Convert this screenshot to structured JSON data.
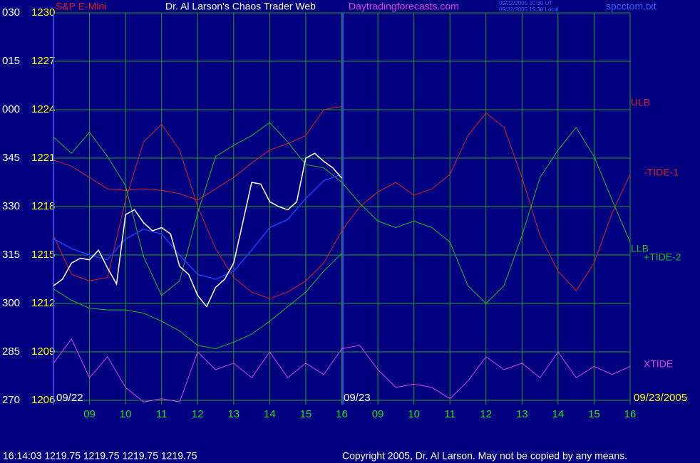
{
  "header": {
    "symbol": "S&P E-Mini",
    "title": "Dr. Al Larson's Chaos Trader Web",
    "site": "Daytradingforecasts.com",
    "time_ut": "09/22/2005 20:30 UT",
    "time_local": "09/22/2005 15:30 Local",
    "file": "spcctom.txt"
  },
  "footer": {
    "quote": "16:14:03  1219.75 1219.75 1219.75 1219.75",
    "copyright": "Copyright 2005, Dr. Al Larson. May not be copied by any means."
  },
  "chart_data": {
    "type": "line",
    "annotations": [
      "09/22",
      "09/23",
      "09/23/2005"
    ],
    "xlim": [
      8,
      24
    ],
    "xticks": [
      {
        "value": 9,
        "label": "09"
      },
      10,
      11,
      12,
      13,
      14,
      15,
      16,
      {
        "value": 17,
        "label": "09"
      },
      {
        "value": 18,
        "label": "10"
      },
      {
        "value": 19,
        "label": "11"
      },
      {
        "value": 20,
        "label": "12"
      },
      {
        "value": 21,
        "label": "13"
      },
      {
        "value": 22,
        "label": "14"
      },
      {
        "value": 23,
        "label": "15"
      },
      {
        "value": 24,
        "label": "16"
      }
    ],
    "ylim": [
      1206,
      1230
    ],
    "yticks": [
      1206,
      1209,
      1212,
      1215,
      1218,
      1221,
      1224,
      1227,
      1230
    ],
    "y2lim": [
      270,
      390
    ],
    "y2ticks": [
      270,
      285,
      300,
      315,
      330,
      345,
      {
        "value": 360,
        "label": "000"
      },
      {
        "value": 375,
        "label": "015"
      },
      {
        "value": 390,
        "label": "030"
      }
    ],
    "grid": true,
    "series": [
      {
        "name": "ULB",
        "color": "#e02020",
        "x": [
          8,
          8.5,
          9,
          9.5,
          10,
          10.5,
          11,
          11.5,
          12,
          12.5,
          13,
          13.5,
          14,
          14.5,
          15,
          15.5,
          16
        ],
        "values": [
          1220.9,
          1220.5,
          1219.8,
          1219.1,
          1219.0,
          1219.1,
          1219.0,
          1218.8,
          1218.4,
          1219.1,
          1219.8,
          1220.7,
          1221.5,
          1221.9,
          1222.4,
          1224.0,
          1224.2
        ]
      },
      {
        "name": "-TIDE-1",
        "color": "#e02020",
        "x": [
          8,
          8.5,
          9,
          9.5,
          10,
          10.5,
          11,
          11.5,
          12,
          12.5,
          13,
          13.5,
          14,
          14.5,
          15,
          15.5,
          16,
          16.5,
          17,
          17.5,
          18,
          18.5,
          19,
          19.5,
          20,
          20.5,
          21,
          21.5,
          22,
          22.5,
          23,
          23.5,
          24
        ],
        "values": [
          1216.2,
          1213.8,
          1213.4,
          1213.6,
          1218.4,
          1222.0,
          1223.1,
          1221.5,
          1218.0,
          1215.4,
          1213.6,
          1212.7,
          1212.3,
          1212.7,
          1213.4,
          1214.5,
          1216.5,
          1218.0,
          1218.9,
          1219.5,
          1218.7,
          1219.1,
          1220.0,
          1222.4,
          1223.8,
          1222.9,
          1219.8,
          1216.2,
          1214.0,
          1212.8,
          1214.5,
          1217.6,
          1220.0
        ]
      },
      {
        "name": "LLB",
        "color": "#20c020",
        "x": [
          8,
          8.5,
          9,
          9.5,
          10,
          10.5,
          11,
          11.5,
          12,
          12.5,
          13,
          13.5,
          14,
          14.5,
          15,
          15.5,
          16
        ],
        "values": [
          1212.9,
          1212.2,
          1211.7,
          1211.6,
          1211.6,
          1211.4,
          1210.9,
          1210.3,
          1209.4,
          1209.2,
          1209.6,
          1210.1,
          1210.9,
          1211.8,
          1212.7,
          1214.0,
          1215.1
        ]
      },
      {
        "name": "+TIDE-2",
        "color": "#20c020",
        "x": [
          8,
          8.5,
          9,
          9.5,
          10,
          10.5,
          11,
          11.5,
          12,
          12.5,
          13,
          13.5,
          14,
          14.5,
          15,
          15.5,
          16,
          16.5,
          17,
          17.5,
          18,
          18.5,
          19,
          19.5,
          20,
          20.5,
          21,
          21.5,
          22,
          22.5,
          23,
          23.5,
          24
        ],
        "values": [
          1222.3,
          1221.3,
          1222.6,
          1221.1,
          1219.3,
          1214.9,
          1212.5,
          1213.4,
          1217.6,
          1221.1,
          1221.8,
          1222.4,
          1223.2,
          1222.0,
          1220.6,
          1220.4,
          1219.5,
          1218.2,
          1217.1,
          1216.7,
          1217.1,
          1216.7,
          1215.8,
          1213.1,
          1212.0,
          1213.1,
          1216.2,
          1219.8,
          1221.5,
          1222.9,
          1221.1,
          1218.4,
          1215.8
        ]
      },
      {
        "name": "XTIDE",
        "color": "#e040e0",
        "x": [
          8,
          8.5,
          9,
          9.5,
          10,
          10.5,
          11,
          11.5,
          12,
          12.5,
          13,
          13.5,
          14,
          14.5,
          15,
          15.5,
          16,
          16.5,
          17,
          17.5,
          18,
          18.5,
          19,
          19.5,
          20,
          20.5,
          21,
          21.5,
          22,
          22.5,
          23,
          23.5,
          24
        ],
        "values": [
          1208.3,
          1209.8,
          1207.4,
          1208.7,
          1206.8,
          1205.9,
          1206.1,
          1205.9,
          1209.0,
          1207.9,
          1208.3,
          1207.4,
          1209.0,
          1207.4,
          1208.3,
          1207.6,
          1209.2,
          1209.4,
          1207.9,
          1206.8,
          1207.0,
          1206.8,
          1206.1,
          1207.2,
          1208.7,
          1207.9,
          1208.3,
          1207.4,
          1209.0,
          1207.4,
          1208.1,
          1207.6,
          1208.1
        ]
      },
      {
        "color": "#2040ff",
        "x": [
          8,
          8.5,
          9,
          9.5,
          10,
          10.5,
          11,
          11.5,
          12,
          12.5,
          13,
          13.5,
          14,
          14.5,
          15,
          15.5,
          16
        ],
        "values": [
          1216.0,
          1215.4,
          1215.0,
          1214.7,
          1216.0,
          1216.6,
          1216.3,
          1215.0,
          1213.8,
          1213.5,
          1214.0,
          1215.3,
          1216.7,
          1217.2,
          1218.5,
          1219.6,
          1220.0
        ]
      },
      {
        "color": "#ffffff",
        "x": [
          8,
          8.25,
          8.5,
          8.75,
          9,
          9.25,
          9.5,
          9.75,
          10,
          10.25,
          10.5,
          10.75,
          11,
          11.25,
          11.5,
          11.75,
          12,
          12.25,
          12.5,
          12.75,
          13,
          13.25,
          13.5,
          13.75,
          14,
          14.25,
          14.5,
          14.75,
          15,
          15.25,
          15.5,
          15.75,
          16
        ],
        "values": [
          1213.1,
          1213.5,
          1214.5,
          1214.8,
          1214.7,
          1215.3,
          1214.2,
          1213.2,
          1217.5,
          1217.8,
          1217.0,
          1216.5,
          1216.7,
          1216.3,
          1214.3,
          1213.8,
          1212.5,
          1211.8,
          1213.0,
          1213.5,
          1214.5,
          1217.0,
          1219.5,
          1219.4,
          1218.3,
          1218.0,
          1217.8,
          1218.3,
          1221.0,
          1221.3,
          1220.8,
          1220.4,
          1219.75
        ]
      }
    ]
  }
}
